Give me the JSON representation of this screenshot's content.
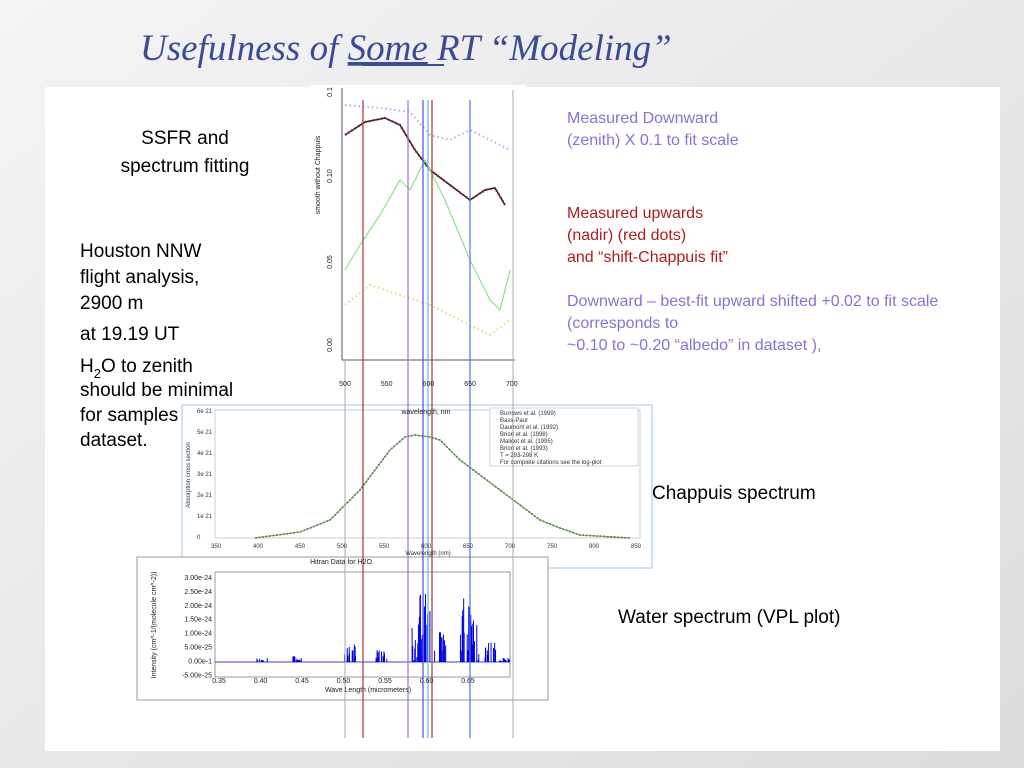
{
  "title": {
    "before": "Usefulness of ",
    "underlined": "Some",
    "after": " RT “Modeling”"
  },
  "left": {
    "heading": [
      "SSFR and",
      "spectrum fitting"
    ],
    "flight": [
      "Houston NNW",
      "flight analysis,",
      "2900 m"
    ],
    "time": "at 19.19 UT",
    "water": {
      "h": "H",
      "sub": "2",
      "rest": "O to zenith",
      "lines": [
        "should be minimal",
        "for samples",
        "dataset."
      ]
    }
  },
  "right": {
    "downward": [
      "Measured Downward",
      "(zenith) X 0.1 to fit scale"
    ],
    "upwards": [
      "Measured upwards",
      "(nadir) (red dots)",
      "and “shift-Chappuis fit”"
    ],
    "bestfit": [
      "Downward – best-fit upward shifted +0.02 to fit scale",
      "(corresponds to",
      "~0.10 to ~0.20 “albedo” in dataset ),"
    ],
    "chappuis": "Chappuis spectrum",
    "water": "Water spectrum (VPL plot)"
  },
  "plot1": {
    "ylabel": "smooth without Chappuis",
    "yticks": [
      "0.00",
      "0.05",
      "0.10",
      "0.1"
    ],
    "xticks": [
      "500",
      "550",
      "600",
      "650",
      "700"
    ],
    "xlabel": "wavelength, nm"
  },
  "plot2": {
    "ylabel": "Absorption cross section",
    "yticks": [
      "0",
      "1e 21",
      "2e 21",
      "3e 21",
      "4e 21",
      "5e 21",
      "6e 21"
    ],
    "xticks": [
      "350",
      "400",
      "450",
      "500",
      "550",
      "600",
      "650",
      "700",
      "750",
      "800",
      "850"
    ],
    "xlabel": "Wavelength (nm)",
    "legend": [
      "Burrows et al. (1999)",
      "Bass-Paur",
      "Daumont et al. (1992)",
      "Brion et al. (1998)",
      "Malicet et al. (1995)",
      "Brion et al. (1993)",
      "T = 293-298 K",
      "For complete citations see the log-plot"
    ]
  },
  "plot3": {
    "title": "Hitran Data for H2O.",
    "yticks": [
      "3.00e-24",
      "2.50e-24",
      "2.00e-24",
      "1.50e-24",
      "1.00e-24",
      "5.00e-25",
      "0.00e-1",
      "-5.00e-25"
    ],
    "xticks": [
      "0.35",
      "0.40",
      "0.45",
      "0.50",
      "0.55",
      "0.60",
      "0.65"
    ],
    "xlabel": "Wave Length (micrometers)",
    "ylabel": "Intensity (cm^-1/(molecule cm^-2))"
  }
}
